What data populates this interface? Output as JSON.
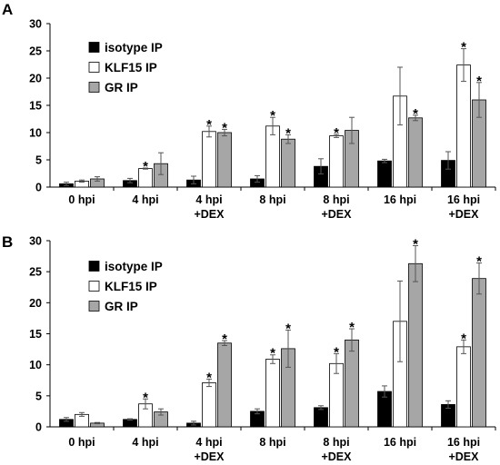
{
  "colors": {
    "isotype": "#000000",
    "klf15": "#ffffff",
    "gr": "#a6a6a6",
    "stroke": "#000000"
  },
  "chart_data": [
    {
      "type": "bar",
      "panel": "A",
      "categories": [
        [
          "0 hpi"
        ],
        [
          "4 hpi"
        ],
        [
          "4 hpi",
          "+DEX"
        ],
        [
          "8 hpi"
        ],
        [
          "8 hpi",
          "+DEX"
        ],
        [
          "16 hpi"
        ],
        [
          "16 hpi",
          "+DEX"
        ]
      ],
      "ylim": [
        0,
        30
      ],
      "yticks": [
        0,
        5,
        10,
        15,
        20,
        25,
        30
      ],
      "grid": false,
      "legend": "top-left",
      "series": [
        {
          "name": "isotype IP",
          "color_key": "isotype",
          "values": [
            0.6,
            1.2,
            1.3,
            1.5,
            3.8,
            4.8,
            4.9
          ],
          "errors": [
            0.3,
            0.4,
            0.7,
            0.6,
            1.4,
            0.3,
            1.6
          ],
          "sig": [
            false,
            false,
            false,
            false,
            false,
            false,
            false
          ]
        },
        {
          "name": "KLF15 IP",
          "color_key": "klf15",
          "values": [
            1.1,
            3.4,
            10.2,
            11.2,
            9.4,
            16.7,
            22.4
          ],
          "errors": [
            0.2,
            0.1,
            1.0,
            1.6,
            0.3,
            5.3,
            3.0
          ],
          "sig": [
            false,
            true,
            true,
            true,
            true,
            false,
            true
          ]
        },
        {
          "name": "GR IP",
          "color_key": "gr",
          "values": [
            1.5,
            4.3,
            10.0,
            8.8,
            10.4,
            12.7,
            16.0
          ],
          "errors": [
            0.4,
            2.0,
            0.6,
            0.8,
            2.4,
            0.5,
            3.2
          ],
          "sig": [
            false,
            false,
            true,
            true,
            false,
            true,
            true
          ]
        }
      ]
    },
    {
      "type": "bar",
      "panel": "B",
      "categories": [
        [
          "0 hpi"
        ],
        [
          "4 hpi"
        ],
        [
          "4 hpi",
          "+DEX"
        ],
        [
          "8 hpi"
        ],
        [
          "8 hpi",
          "+DEX"
        ],
        [
          "16 hpi"
        ],
        [
          "16 hpi",
          "+DEX"
        ]
      ],
      "ylim": [
        0,
        30
      ],
      "yticks": [
        0,
        5,
        10,
        15,
        20,
        25,
        30
      ],
      "grid": false,
      "legend": "top-left",
      "series": [
        {
          "name": "isotype IP",
          "color_key": "isotype",
          "values": [
            1.2,
            1.2,
            0.6,
            2.5,
            3.1,
            5.7,
            3.6
          ],
          "errors": [
            0.3,
            0.1,
            0.3,
            0.4,
            0.3,
            0.9,
            0.6
          ],
          "sig": [
            false,
            false,
            false,
            false,
            false,
            false,
            false
          ]
        },
        {
          "name": "KLF15 IP",
          "color_key": "klf15",
          "values": [
            2.0,
            3.7,
            7.1,
            10.9,
            10.2,
            17.0,
            12.9
          ],
          "errors": [
            0.3,
            0.8,
            0.6,
            0.7,
            1.6,
            6.5,
            1.1
          ],
          "sig": [
            false,
            true,
            true,
            true,
            true,
            false,
            true
          ]
        },
        {
          "name": "GR IP",
          "color_key": "gr",
          "values": [
            0.6,
            2.4,
            13.5,
            12.6,
            14.0,
            26.3,
            23.9
          ],
          "errors": [
            0.1,
            0.5,
            0.4,
            3.0,
            1.8,
            2.9,
            2.5
          ],
          "sig": [
            false,
            false,
            true,
            true,
            true,
            true,
            true
          ]
        }
      ]
    }
  ]
}
